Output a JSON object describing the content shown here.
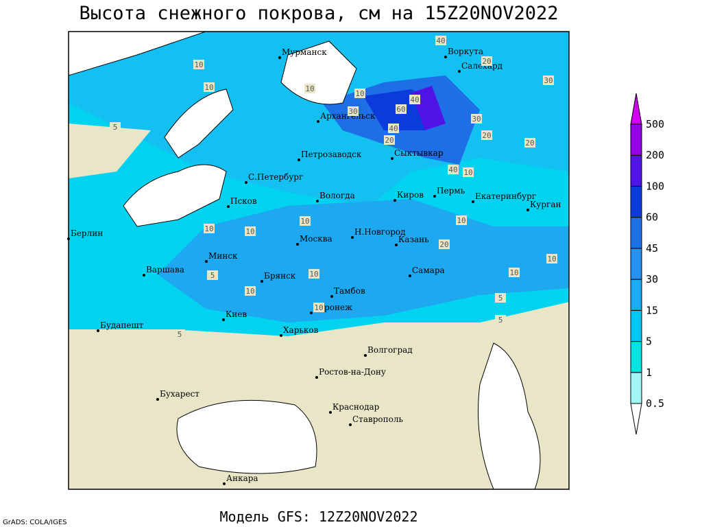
{
  "title": "Высота снежного покрова, см на 15Z20NOV2022",
  "footer": "Модель GFS: 12Z20NOV2022",
  "credit": "GrADS: COLA/IGES",
  "cities": [
    "Мурманск",
    "Воркута",
    "Салехард",
    "Архангельск",
    "Сыктывкар",
    "Петрозаводск",
    "С.Петербург",
    "Вологда",
    "Киров",
    "Пермь",
    "Екатеринбург",
    "Курган",
    "Псков",
    "Берлин",
    "Москва",
    "Н.Новгород",
    "Казань",
    "Минск",
    "Варшава",
    "Самара",
    "Брянск",
    "Тамбов",
    "Воронеж",
    "Киев",
    "Будапешт",
    "Харьков",
    "Волгоград",
    "Ростов-на-Дону",
    "Бухарест",
    "Краснодар",
    "Ставрополь",
    "Анкара"
  ],
  "contour_labels": [
    "10",
    "10",
    "10",
    "5",
    "10",
    "30",
    "60",
    "40",
    "40",
    "20",
    "40",
    "20",
    "30",
    "30",
    "20",
    "20",
    "40",
    "10",
    "10",
    "10",
    "10",
    "10",
    "20",
    "10",
    "10",
    "10",
    "10",
    "10",
    "5",
    "5",
    "5",
    "5"
  ],
  "colorbar": {
    "levels": [
      0.5,
      1,
      5,
      15,
      30,
      45,
      60,
      100,
      200,
      500
    ],
    "colors": [
      "#ffffff",
      "#a0f5f5",
      "#00e1e1",
      "#00c8f5",
      "#1eaaf5",
      "#2891f0",
      "#1e6ee6",
      "#0a3cdc",
      "#5014e6",
      "#9600e6",
      "#d200f0"
    ]
  }
}
